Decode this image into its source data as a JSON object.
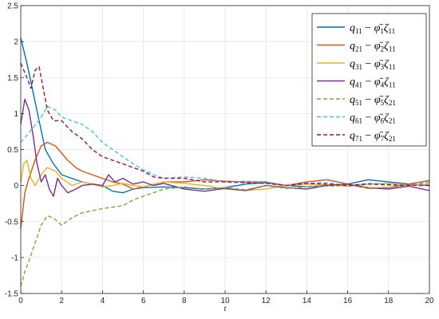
{
  "chart_data": {
    "type": "line",
    "title": "",
    "xlabel": "t",
    "ylabel": "",
    "xlim": [
      0,
      20
    ],
    "ylim": [
      -1.5,
      2.5
    ],
    "xticks": [
      0,
      2,
      4,
      6,
      8,
      10,
      12,
      14,
      16,
      18,
      20
    ],
    "yticks": [
      -1.5,
      -1,
      -0.5,
      0,
      0.5,
      1,
      1.5,
      2,
      2.5
    ],
    "xtick_labels": [
      "0",
      "2",
      "4",
      "6",
      "8",
      "10",
      "12",
      "14",
      "16",
      "18",
      "20"
    ],
    "ytick_labels": [
      "-1.5",
      "-1",
      "-0.5",
      "0",
      "0.5",
      "1",
      "1.5",
      "2",
      "2.5"
    ],
    "grid": true,
    "legend_position": "top-right",
    "series": [
      {
        "name": "q11 − φ̄1ζ11",
        "legend": {
          "q_sub": "11",
          "phi_sub": "1",
          "zeta_sub": "11"
        },
        "color": "#0072BD",
        "dash": "solid",
        "points": [
          [
            0,
            2.05
          ],
          [
            0.3,
            1.7
          ],
          [
            0.6,
            1.3
          ],
          [
            0.9,
            0.9
          ],
          [
            1.2,
            0.5
          ],
          [
            1.6,
            0.3
          ],
          [
            2,
            0.15
          ],
          [
            2.5,
            0.1
          ],
          [
            3,
            0.05
          ],
          [
            3.5,
            0.02
          ],
          [
            4,
            0.0
          ],
          [
            4.5,
            -0.08
          ],
          [
            5,
            -0.1
          ],
          [
            5.5,
            -0.05
          ],
          [
            6,
            -0.03
          ],
          [
            7,
            -0.02
          ],
          [
            8,
            -0.03
          ],
          [
            9,
            -0.05
          ],
          [
            10,
            -0.03
          ],
          [
            11,
            0.02
          ],
          [
            12,
            0.04
          ],
          [
            13,
            0.0
          ],
          [
            14,
            -0.02
          ],
          [
            15,
            0.0
          ],
          [
            16,
            0.02
          ],
          [
            17,
            0.08
          ],
          [
            18,
            0.05
          ],
          [
            19,
            0.02
          ],
          [
            20,
            0.0
          ]
        ]
      },
      {
        "name": "q21 − φ̄2ζ11",
        "legend": {
          "q_sub": "21",
          "phi_sub": "2",
          "zeta_sub": "11"
        },
        "color": "#D95319",
        "dash": "solid",
        "points": [
          [
            0,
            -0.6
          ],
          [
            0.2,
            -0.1
          ],
          [
            0.4,
            0.1
          ],
          [
            0.7,
            0.35
          ],
          [
            1,
            0.55
          ],
          [
            1.3,
            0.6
          ],
          [
            1.7,
            0.55
          ],
          [
            2,
            0.45
          ],
          [
            2.3,
            0.35
          ],
          [
            2.7,
            0.25
          ],
          [
            3,
            0.2
          ],
          [
            3.5,
            0.15
          ],
          [
            4,
            0.1
          ],
          [
            4.5,
            0.05
          ],
          [
            5,
            0.02
          ],
          [
            5.5,
            -0.05
          ],
          [
            6,
            -0.02
          ],
          [
            7,
            0.05
          ],
          [
            8,
            0.05
          ],
          [
            9,
            0.08
          ],
          [
            10,
            0.06
          ],
          [
            11,
            0.05
          ],
          [
            12,
            0.05
          ],
          [
            13,
            0.0
          ],
          [
            14,
            0.05
          ],
          [
            15,
            0.08
          ],
          [
            16,
            0.02
          ],
          [
            17,
            -0.04
          ],
          [
            18,
            -0.03
          ],
          [
            19,
            0.02
          ],
          [
            20,
            0.07
          ]
        ]
      },
      {
        "name": "q31 − φ̄3ζ11",
        "legend": {
          "q_sub": "31",
          "phi_sub": "3",
          "zeta_sub": "11"
        },
        "color": "#EDB120",
        "dash": "solid",
        "points": [
          [
            0,
            0.05
          ],
          [
            0.15,
            0.3
          ],
          [
            0.3,
            0.35
          ],
          [
            0.5,
            0.1
          ],
          [
            0.7,
            0.0
          ],
          [
            1,
            0.15
          ],
          [
            1.3,
            0.25
          ],
          [
            1.7,
            0.2
          ],
          [
            2,
            0.1
          ],
          [
            2.5,
            0.0
          ],
          [
            3,
            0.05
          ],
          [
            3.5,
            0.02
          ],
          [
            4,
            -0.02
          ],
          [
            4.5,
            0.0
          ],
          [
            5,
            0.03
          ],
          [
            5.5,
            0.0
          ],
          [
            6,
            -0.02
          ],
          [
            7,
            0.05
          ],
          [
            8,
            0.03
          ],
          [
            9,
            0.0
          ],
          [
            10,
            -0.05
          ],
          [
            11,
            -0.07
          ],
          [
            12,
            -0.05
          ],
          [
            13,
            0.0
          ],
          [
            14,
            0.02
          ],
          [
            15,
            0.01
          ],
          [
            16,
            -0.01
          ],
          [
            17,
            0.02
          ],
          [
            18,
            0.03
          ],
          [
            19,
            0.0
          ],
          [
            20,
            0.02
          ]
        ]
      },
      {
        "name": "q41 − φ̄4ζ11",
        "legend": {
          "q_sub": "41",
          "phi_sub": "4",
          "zeta_sub": "11"
        },
        "color": "#7E2F8E",
        "dash": "solid",
        "points": [
          [
            0,
            0.85
          ],
          [
            0.2,
            1.2
          ],
          [
            0.4,
            1.05
          ],
          [
            0.6,
            0.7
          ],
          [
            0.8,
            0.3
          ],
          [
            1,
            0.05
          ],
          [
            1.2,
            0.15
          ],
          [
            1.4,
            -0.05
          ],
          [
            1.6,
            -0.15
          ],
          [
            1.8,
            0.1
          ],
          [
            2,
            0.0
          ],
          [
            2.3,
            -0.1
          ],
          [
            2.7,
            -0.05
          ],
          [
            3,
            0.0
          ],
          [
            3.5,
            0.02
          ],
          [
            4,
            0.0
          ],
          [
            4.3,
            0.15
          ],
          [
            4.6,
            0.05
          ],
          [
            5,
            0.1
          ],
          [
            5.5,
            0.02
          ],
          [
            6,
            0.05
          ],
          [
            6.5,
            0.0
          ],
          [
            7,
            0.03
          ],
          [
            8,
            -0.05
          ],
          [
            9,
            -0.08
          ],
          [
            10,
            -0.04
          ],
          [
            11,
            -0.07
          ],
          [
            12,
            0.0
          ],
          [
            13,
            -0.03
          ],
          [
            14,
            -0.05
          ],
          [
            15,
            0.0
          ],
          [
            16,
            0.02
          ],
          [
            17,
            -0.03
          ],
          [
            18,
            -0.05
          ],
          [
            19,
            -0.01
          ],
          [
            20,
            -0.07
          ]
        ]
      },
      {
        "name": "q51 − φ̄5ζ21",
        "legend": {
          "q_sub": "51",
          "phi_sub": "5",
          "zeta_sub": "21"
        },
        "color": "#77AC30",
        "dash": "dashed",
        "points": [
          [
            0,
            -1.4
          ],
          [
            0.2,
            -1.2
          ],
          [
            0.4,
            -1.05
          ],
          [
            0.7,
            -0.8
          ],
          [
            1,
            -0.55
          ],
          [
            1.3,
            -0.42
          ],
          [
            1.6,
            -0.45
          ],
          [
            2,
            -0.55
          ],
          [
            2.5,
            -0.45
          ],
          [
            3,
            -0.38
          ],
          [
            3.5,
            -0.35
          ],
          [
            4,
            -0.32
          ],
          [
            4.5,
            -0.3
          ],
          [
            5,
            -0.28
          ],
          [
            5.5,
            -0.2
          ],
          [
            6,
            -0.15
          ],
          [
            7,
            -0.05
          ],
          [
            8,
            -0.02
          ],
          [
            9,
            -0.05
          ],
          [
            10,
            -0.03
          ],
          [
            11,
            -0.06
          ],
          [
            12,
            0.0
          ],
          [
            13,
            -0.04
          ],
          [
            14,
            -0.02
          ],
          [
            15,
            -0.01
          ],
          [
            16,
            0.0
          ],
          [
            17,
            -0.03
          ],
          [
            18,
            -0.03
          ],
          [
            19,
            0.0
          ],
          [
            20,
            0.05
          ]
        ]
      },
      {
        "name": "q61 − φ̄6ζ21",
        "legend": {
          "q_sub": "61",
          "phi_sub": "6",
          "zeta_sub": "21"
        },
        "color": "#4DBEEE",
        "dash": "dashed",
        "points": [
          [
            0,
            0.6
          ],
          [
            0.3,
            0.7
          ],
          [
            0.6,
            0.8
          ],
          [
            1,
            0.95
          ],
          [
            1.3,
            1.1
          ],
          [
            1.7,
            1.05
          ],
          [
            2,
            0.95
          ],
          [
            2.5,
            0.9
          ],
          [
            3,
            0.85
          ],
          [
            3.5,
            0.75
          ],
          [
            4,
            0.6
          ],
          [
            4.5,
            0.5
          ],
          [
            5,
            0.4
          ],
          [
            5.5,
            0.3
          ],
          [
            6,
            0.22
          ],
          [
            6.5,
            0.15
          ],
          [
            7,
            0.1
          ],
          [
            8,
            0.12
          ],
          [
            9,
            0.1
          ],
          [
            10,
            0.05
          ],
          [
            11,
            0.06
          ],
          [
            12,
            0.05
          ],
          [
            13,
            0.0
          ],
          [
            14,
            0.03
          ],
          [
            15,
            0.04
          ],
          [
            16,
            0.0
          ],
          [
            17,
            0.03
          ],
          [
            18,
            0.02
          ],
          [
            19,
            0.0
          ],
          [
            20,
            0.02
          ]
        ]
      },
      {
        "name": "q71 − φ̄7ζ21",
        "legend": {
          "q_sub": "71",
          "phi_sub": "7",
          "zeta_sub": "21"
        },
        "color": "#A2142F",
        "dash": "dashed",
        "points": [
          [
            0,
            1.7
          ],
          [
            0.3,
            1.5
          ],
          [
            0.5,
            1.35
          ],
          [
            0.7,
            1.6
          ],
          [
            0.9,
            1.65
          ],
          [
            1.1,
            1.35
          ],
          [
            1.3,
            1.05
          ],
          [
            1.6,
            0.9
          ],
          [
            2,
            0.9
          ],
          [
            2.5,
            0.75
          ],
          [
            3,
            0.65
          ],
          [
            3.5,
            0.5
          ],
          [
            4,
            0.4
          ],
          [
            4.5,
            0.35
          ],
          [
            5,
            0.3
          ],
          [
            5.5,
            0.25
          ],
          [
            6,
            0.2
          ],
          [
            6.5,
            0.12
          ],
          [
            7,
            0.1
          ],
          [
            8,
            0.1
          ],
          [
            9,
            0.05
          ],
          [
            10,
            0.05
          ],
          [
            11,
            0.04
          ],
          [
            12,
            0.03
          ],
          [
            13,
            0.0
          ],
          [
            14,
            0.03
          ],
          [
            15,
            0.02
          ],
          [
            16,
            0.0
          ],
          [
            17,
            0.02
          ],
          [
            18,
            0.01
          ],
          [
            19,
            0.0
          ],
          [
            20,
            0.0
          ]
        ]
      }
    ]
  }
}
